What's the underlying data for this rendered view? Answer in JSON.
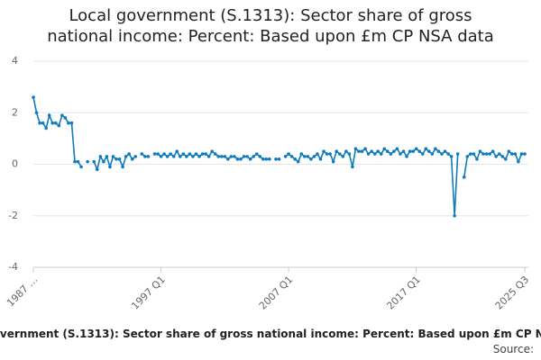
{
  "chart_data": {
    "type": "line",
    "title": "Local government (S.1313): Sector share of gross national income: Percent: Based upon £m CP NSA data",
    "source": "Source:",
    "categories": [
      "1987 …",
      null,
      null,
      null,
      null,
      null,
      null,
      null,
      null,
      null,
      null,
      null,
      null,
      null,
      null,
      null,
      null,
      null,
      null,
      null,
      null,
      null,
      null,
      null,
      null,
      null,
      null,
      null,
      null,
      null,
      null,
      null,
      null,
      null,
      null,
      null,
      null,
      null,
      null,
      null,
      "1997 Q1",
      null,
      null,
      null,
      null,
      null,
      null,
      null,
      null,
      null,
      null,
      null,
      null,
      null,
      null,
      null,
      null,
      null,
      null,
      null,
      null,
      null,
      null,
      null,
      null,
      null,
      null,
      null,
      null,
      null,
      null,
      null,
      null,
      null,
      null,
      null,
      null,
      null,
      null,
      null,
      "2007 Q1",
      null,
      null,
      null,
      null,
      null,
      null,
      null,
      null,
      null,
      null,
      null,
      null,
      null,
      null,
      null,
      null,
      null,
      null,
      null,
      null,
      null,
      null,
      null,
      null,
      null,
      null,
      null,
      null,
      null,
      null,
      null,
      null,
      null,
      null,
      null,
      null,
      null,
      null,
      null,
      "2017 Q1",
      null,
      null,
      null,
      null,
      null,
      null,
      null,
      null,
      null,
      null,
      null,
      null,
      null,
      null,
      null,
      null,
      null,
      null,
      null,
      null,
      null,
      null,
      null,
      null,
      null,
      null,
      null,
      null,
      null,
      null,
      null,
      null,
      null,
      "2025 Q3"
    ],
    "series": [
      {
        "name": "Local government (S.1313): Sector share of gross national income",
        "color": "#0f7cbf",
        "values": [
          2.6,
          2.0,
          1.6,
          1.6,
          1.4,
          1.9,
          1.6,
          1.6,
          1.5,
          1.9,
          1.8,
          1.6,
          1.6,
          0.1,
          0.1,
          -0.1,
          null,
          0.1,
          null,
          0.1,
          -0.2,
          0.3,
          0.1,
          0.3,
          -0.1,
          0.3,
          0.2,
          0.2,
          -0.1,
          0.3,
          0.4,
          0.2,
          0.3,
          null,
          0.4,
          0.3,
          0.3,
          null,
          0.4,
          0.4,
          0.3,
          0.4,
          0.3,
          0.4,
          0.3,
          0.5,
          0.3,
          0.4,
          0.3,
          0.4,
          0.3,
          0.4,
          0.3,
          0.4,
          0.4,
          0.3,
          0.5,
          0.4,
          0.3,
          0.3,
          0.3,
          0.2,
          0.3,
          0.3,
          0.2,
          0.2,
          0.3,
          0.3,
          0.2,
          0.3,
          0.4,
          0.3,
          0.2,
          0.2,
          0.2,
          null,
          0.2,
          0.2,
          null,
          0.3,
          0.4,
          0.3,
          0.2,
          0.1,
          0.4,
          0.3,
          0.3,
          0.2,
          0.3,
          0.4,
          0.2,
          0.5,
          0.4,
          0.4,
          0.1,
          0.5,
          0.4,
          0.3,
          0.5,
          0.4,
          -0.1,
          0.6,
          0.5,
          0.5,
          0.6,
          0.4,
          0.5,
          0.4,
          0.5,
          0.4,
          0.6,
          0.5,
          0.4,
          0.5,
          0.6,
          0.4,
          0.5,
          0.3,
          0.5,
          0.5,
          0.6,
          0.5,
          0.4,
          0.6,
          0.5,
          0.4,
          0.6,
          0.5,
          0.4,
          0.5,
          0.4,
          0.3,
          -2.0,
          0.4,
          null,
          -0.5,
          0.3,
          0.4,
          0.4,
          0.2,
          0.5,
          0.4,
          0.4,
          0.4,
          0.5,
          0.3,
          0.4,
          0.3,
          0.2,
          0.5,
          0.4,
          0.4,
          0.1,
          0.4,
          0.4
        ]
      }
    ],
    "ylim": [
      -4,
      4
    ],
    "yticks": [
      -4,
      -2,
      0,
      2,
      4
    ],
    "grid": true
  }
}
